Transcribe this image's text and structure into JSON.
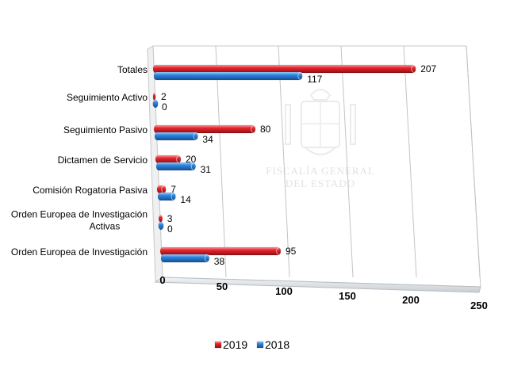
{
  "chart_data": {
    "type": "bar",
    "orientation": "horizontal",
    "style": "3d-cylinder",
    "title": "",
    "xlabel": "",
    "ylabel": "",
    "xlim": [
      0,
      250
    ],
    "xticks": [
      0,
      50,
      100,
      150,
      200,
      250
    ],
    "grid": true,
    "legend_position": "bottom",
    "categories": [
      "Totales",
      "Seguimiento Activo",
      "Seguimiento Pasivo",
      "Dictamen de Servicio",
      "Comisión Rogatoria Pasiva",
      "Orden Europea de Investigación Activas",
      "Orden Europea de Investigación"
    ],
    "category_lines": [
      [
        "Totales"
      ],
      [
        "Seguimiento Activo"
      ],
      [
        "Seguimiento Pasivo"
      ],
      [
        "Dictamen de Servicio"
      ],
      [
        "Comisión Rogatoria Pasiva"
      ],
      [
        "Orden Europea de Investigación",
        "Activas"
      ],
      [
        "Orden Europea de Investigación"
      ]
    ],
    "series": [
      {
        "name": "2019",
        "color": "#e3252d",
        "values": [
          207,
          2,
          80,
          20,
          7,
          3,
          95
        ]
      },
      {
        "name": "2018",
        "color": "#2f7fd6",
        "values": [
          117,
          0,
          34,
          31,
          14,
          0,
          38
        ]
      }
    ]
  },
  "watermark": {
    "line1": "FISCALÍA GENERAL",
    "line2": "DEL ESTADO"
  }
}
